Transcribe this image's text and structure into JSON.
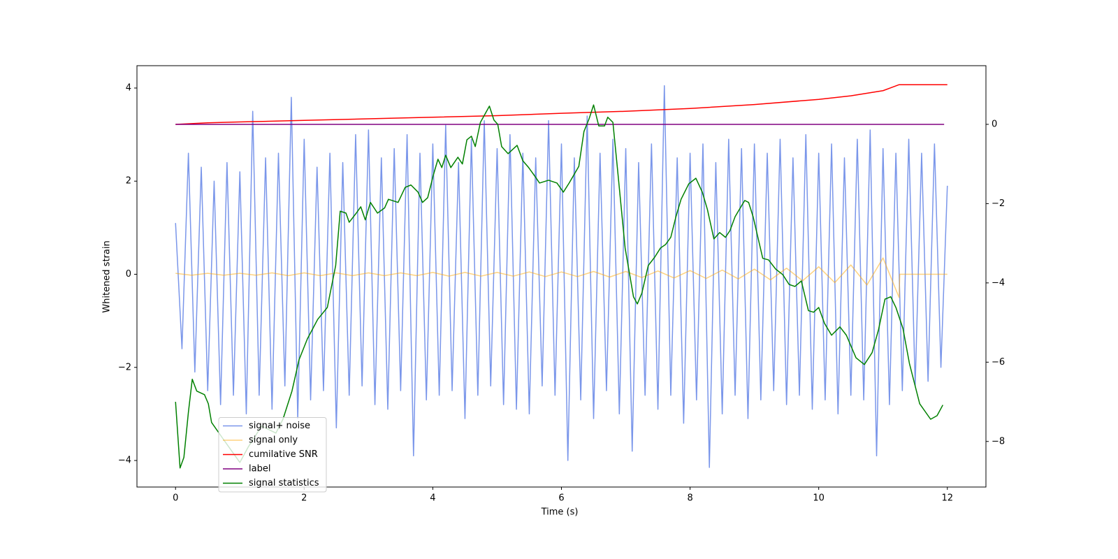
{
  "chart_data": {
    "type": "line",
    "xlabel": "Time (s)",
    "ylabel": "Whitened strain",
    "xlim": [
      -0.6,
      12.6
    ],
    "ylim": [
      -4.57,
      4.48
    ],
    "y2lim": [
      -9.15,
      1.48
    ],
    "xticks": [
      0,
      2,
      4,
      6,
      8,
      10,
      12
    ],
    "yticks": [
      {
        "value": -4,
        "label": "−4"
      },
      {
        "value": -2,
        "label": "−2"
      },
      0,
      2,
      4
    ],
    "y2ticks": [
      {
        "value": -8,
        "label": "−8"
      },
      {
        "value": -6,
        "label": "−6"
      },
      {
        "value": -4,
        "label": "−4"
      },
      {
        "value": -2,
        "label": "−2"
      },
      0
    ],
    "legend": "lower left",
    "series": [
      {
        "name": "signal+ noise",
        "color": "#4169e1",
        "alpha": 0.7,
        "axis": "y",
        "x": [
          0,
          0.1,
          0.2,
          0.3,
          0.4,
          0.5,
          0.6,
          0.7,
          0.8,
          0.9,
          1,
          1.1,
          1.2,
          1.3,
          1.4,
          1.5,
          1.6,
          1.7,
          1.8,
          1.9,
          2,
          2.1,
          2.2,
          2.3,
          2.4,
          2.5,
          2.6,
          2.7,
          2.8,
          2.9,
          3,
          3.1,
          3.2,
          3.3,
          3.4,
          3.5,
          3.6,
          3.7,
          3.8,
          3.9,
          4,
          4.1,
          4.2,
          4.3,
          4.4,
          4.5,
          4.6,
          4.7,
          4.8,
          4.9,
          5,
          5.1,
          5.2,
          5.3,
          5.4,
          5.5,
          5.6,
          5.7,
          5.8,
          5.9,
          6,
          6.1,
          6.2,
          6.3,
          6.4,
          6.5,
          6.6,
          6.7,
          6.8,
          6.9,
          7,
          7.1,
          7.2,
          7.3,
          7.4,
          7.5,
          7.6,
          7.7,
          7.8,
          7.9,
          8,
          8.1,
          8.2,
          8.3,
          8.4,
          8.5,
          8.6,
          8.7,
          8.8,
          8.9,
          9,
          9.1,
          9.2,
          9.3,
          9.4,
          9.5,
          9.6,
          9.7,
          9.8,
          9.9,
          10,
          10.1,
          10.2,
          10.3,
          10.4,
          10.5,
          10.6,
          10.7,
          10.8,
          10.9,
          11,
          11.1,
          11.2,
          11.3,
          11.4,
          11.5,
          11.6,
          11.7,
          11.8,
          11.9,
          12
        ],
        "values": [
          1.1,
          -1.6,
          2.6,
          -2.1,
          2.3,
          -2.5,
          2.0,
          -2.8,
          2.4,
          -2.6,
          2.2,
          -3.0,
          3.5,
          -2.6,
          2.5,
          -2.9,
          2.6,
          -2.4,
          3.8,
          -3.1,
          2.9,
          -2.7,
          2.3,
          -2.5,
          2.6,
          -3.3,
          2.4,
          -2.6,
          3.0,
          -2.4,
          3.1,
          -2.8,
          2.5,
          -2.9,
          2.7,
          -2.5,
          3.0,
          -3.9,
          2.6,
          -2.7,
          2.8,
          -2.6,
          3.2,
          -2.5,
          2.4,
          -3.1,
          2.9,
          -2.6,
          3.3,
          -2.4,
          2.7,
          -2.8,
          3.0,
          -2.9,
          2.6,
          -3.0,
          2.5,
          -2.4,
          3.3,
          -2.6,
          2.8,
          -4.0,
          2.5,
          -2.7,
          3.4,
          -3.1,
          2.6,
          -2.5,
          2.9,
          -3.0,
          2.7,
          -3.8,
          2.4,
          -2.6,
          2.8,
          -2.9,
          4.05,
          -2.6,
          2.5,
          -3.2,
          2.6,
          -2.7,
          2.8,
          -4.15,
          2.4,
          -3.0,
          2.9,
          -2.6,
          2.7,
          -3.1,
          2.8,
          -2.7,
          2.6,
          -2.5,
          2.9,
          -2.8,
          2.5,
          -2.6,
          3.0,
          -2.9,
          2.6,
          -2.7,
          2.8,
          -3.0,
          2.5,
          -2.6,
          2.9,
          -2.7,
          3.1,
          -3.9,
          2.7,
          -2.8,
          2.6,
          -2.5,
          2.9,
          -2.4,
          2.6,
          -2.3,
          2.8,
          -2.0,
          1.9
        ]
      },
      {
        "name": "signal only",
        "color": "#ffa500",
        "alpha": 0.5,
        "axis": "y",
        "x": [
          0,
          0.25,
          0.5,
          0.75,
          1,
          1.25,
          1.5,
          1.75,
          2,
          2.25,
          2.5,
          2.75,
          3,
          3.25,
          3.5,
          3.75,
          4,
          4.25,
          4.5,
          4.75,
          5,
          5.25,
          5.5,
          5.75,
          6,
          6.25,
          6.5,
          6.75,
          7,
          7.25,
          7.5,
          7.75,
          8,
          8.25,
          8.5,
          8.75,
          9,
          9.25,
          9.5,
          9.75,
          10,
          10.25,
          10.5,
          10.75,
          11,
          11.25,
          11.26,
          12
        ],
        "values": [
          0.02,
          -0.02,
          0.02,
          -0.02,
          0.02,
          -0.02,
          0.03,
          -0.03,
          0.03,
          -0.03,
          0.03,
          -0.03,
          0.03,
          -0.03,
          0.03,
          -0.03,
          0.04,
          -0.04,
          0.04,
          -0.04,
          0.04,
          -0.04,
          0.05,
          -0.05,
          0.05,
          -0.05,
          0.06,
          -0.06,
          0.06,
          -0.07,
          0.07,
          -0.08,
          0.08,
          -0.09,
          0.09,
          -0.1,
          0.11,
          -0.12,
          0.13,
          -0.14,
          0.16,
          -0.18,
          0.2,
          -0.23,
          0.35,
          -0.5,
          0,
          0
        ]
      },
      {
        "name": "cumilative SNR",
        "color": "#ff0000",
        "axis": "y2",
        "x": [
          0,
          0.5,
          1,
          2,
          3,
          4,
          5,
          6,
          7,
          8,
          9,
          10,
          10.5,
          11,
          11.25,
          12
        ],
        "values": [
          0,
          0.04,
          0.06,
          0.1,
          0.14,
          0.18,
          0.22,
          0.28,
          0.33,
          0.4,
          0.5,
          0.63,
          0.72,
          0.85,
          1.0,
          1.0
        ]
      },
      {
        "name": "label",
        "color": "#800080",
        "axis": "y2",
        "x": [
          0,
          11.95
        ],
        "values": [
          0,
          0
        ]
      },
      {
        "name": "signal statistics",
        "color": "#008000",
        "axis": "y2",
        "x": [
          0,
          0.07,
          0.13,
          0.2,
          0.26,
          0.33,
          0.45,
          0.51,
          0.56,
          0.75,
          1.0,
          1.13,
          1.34,
          1.56,
          1.67,
          1.81,
          1.92,
          2.05,
          2.21,
          2.36,
          2.49,
          2.56,
          2.65,
          2.7,
          2.81,
          2.88,
          2.95,
          3.03,
          3.14,
          3.25,
          3.31,
          3.46,
          3.57,
          3.66,
          3.77,
          3.84,
          3.92,
          4.01,
          4.08,
          4.14,
          4.2,
          4.28,
          4.39,
          4.46,
          4.53,
          4.6,
          4.66,
          4.74,
          4.88,
          4.95,
          5.01,
          5.07,
          5.17,
          5.31,
          5.4,
          5.49,
          5.57,
          5.66,
          5.8,
          5.93,
          6.03,
          6.12,
          6.27,
          6.35,
          6.43,
          6.5,
          6.58,
          6.67,
          6.72,
          6.8,
          6.88,
          6.99,
          7.12,
          7.18,
          7.25,
          7.35,
          7.45,
          7.54,
          7.62,
          7.7,
          7.78,
          7.86,
          7.98,
          8.09,
          8.19,
          8.27,
          8.37,
          8.46,
          8.55,
          8.62,
          8.7,
          8.78,
          8.85,
          8.91,
          8.98,
          9.06,
          9.13,
          9.22,
          9.33,
          9.44,
          9.54,
          9.63,
          9.73,
          9.84,
          9.92,
          10.0,
          10.09,
          10.2,
          10.33,
          10.43,
          10.58,
          10.71,
          10.83,
          10.93,
          11.03,
          11.12,
          11.2,
          11.31,
          11.41,
          11.57,
          11.74,
          11.84,
          11.93
        ],
        "values": [
          -7.0,
          -8.67,
          -8.4,
          -7.26,
          -6.43,
          -6.73,
          -6.82,
          -7.05,
          -7.52,
          -7.96,
          -8.53,
          -8.14,
          -7.61,
          -7.79,
          -7.44,
          -6.73,
          -5.94,
          -5.41,
          -4.92,
          -4.62,
          -3.56,
          -2.19,
          -2.24,
          -2.47,
          -2.24,
          -2.08,
          -2.41,
          -1.97,
          -2.24,
          -2.11,
          -1.89,
          -1.97,
          -1.59,
          -1.53,
          -1.71,
          -1.97,
          -1.85,
          -1.27,
          -0.88,
          -1.09,
          -0.78,
          -1.09,
          -0.83,
          -1.0,
          -0.39,
          -0.3,
          -0.56,
          0.05,
          0.46,
          0.11,
          0,
          -0.56,
          -0.74,
          -0.53,
          -0.92,
          -1.09,
          -1.27,
          -1.48,
          -1.41,
          -1.48,
          -1.71,
          -1.48,
          -1.06,
          -0.18,
          0.14,
          0.49,
          -0.04,
          -0.04,
          0.18,
          0.05,
          -1.27,
          -3.12,
          -4.35,
          -4.53,
          -4.26,
          -3.56,
          -3.35,
          -3.12,
          -3.03,
          -2.85,
          -2.33,
          -1.89,
          -1.5,
          -1.36,
          -1.71,
          -2.15,
          -2.89,
          -2.73,
          -2.85,
          -2.68,
          -2.33,
          -2.11,
          -1.92,
          -1.97,
          -2.33,
          -2.89,
          -3.38,
          -3.42,
          -3.65,
          -3.79,
          -4.04,
          -4.09,
          -3.95,
          -4.7,
          -4.74,
          -4.62,
          -5.02,
          -5.32,
          -5.11,
          -5.32,
          -5.89,
          -6.06,
          -5.76,
          -5.18,
          -4.41,
          -4.35,
          -4.62,
          -5.15,
          -6.03,
          -7.05,
          -7.44,
          -7.35,
          -7.08
        ]
      }
    ]
  }
}
